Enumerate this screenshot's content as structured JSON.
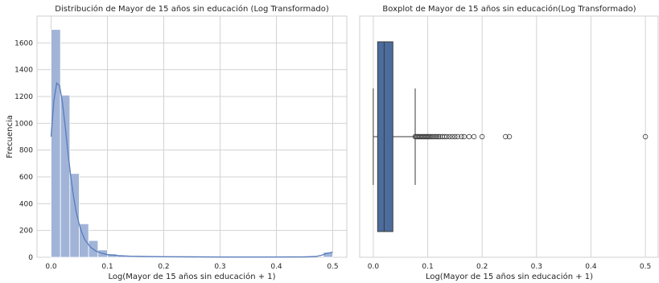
{
  "colors": {
    "hist_fill": "#a1b4d8",
    "hist_stroke": "#ffffff",
    "kde_line": "#5b7fbd",
    "box_fill": "#4c6c9e",
    "box_line": "#3b3b3b",
    "grid": "#d3d3d3",
    "frame": "#cfcfcf",
    "text": "#262626"
  },
  "chart_data": [
    {
      "type": "bar",
      "title": "Distribución de Mayor de 15 años sin educación (Log Transformado)",
      "xlabel": "Log(Mayor de 15 años sin educación + 1)",
      "ylabel": "Frecuencia",
      "xlim": [
        -0.025,
        0.525
      ],
      "ylim": [
        0,
        1800
      ],
      "xticks": [
        0.0,
        0.1,
        0.2,
        0.3,
        0.4,
        0.5
      ],
      "xtick_labels": [
        "0.0",
        "0.1",
        "0.2",
        "0.3",
        "0.4",
        "0.5"
      ],
      "yticks": [
        0,
        200,
        400,
        600,
        800,
        1000,
        1200,
        1400,
        1600
      ],
      "ytick_labels": [
        "0",
        "200",
        "400",
        "600",
        "800",
        "1000",
        "1200",
        "1400",
        "1600"
      ],
      "grid": true,
      "bin_width": 0.01667,
      "bins": [
        {
          "x0": 0.0,
          "x1": 0.01667,
          "count": 1700
        },
        {
          "x0": 0.01667,
          "x1": 0.03333,
          "count": 1210
        },
        {
          "x0": 0.03333,
          "x1": 0.05,
          "count": 625
        },
        {
          "x0": 0.05,
          "x1": 0.06667,
          "count": 250
        },
        {
          "x0": 0.06667,
          "x1": 0.08333,
          "count": 125
        },
        {
          "x0": 0.08333,
          "x1": 0.1,
          "count": 55
        },
        {
          "x0": 0.1,
          "x1": 0.11667,
          "count": 25
        },
        {
          "x0": 0.11667,
          "x1": 0.13333,
          "count": 12
        },
        {
          "x0": 0.13333,
          "x1": 0.15,
          "count": 8
        },
        {
          "x0": 0.15,
          "x1": 0.16667,
          "count": 6
        },
        {
          "x0": 0.16667,
          "x1": 0.18333,
          "count": 4
        },
        {
          "x0": 0.18333,
          "x1": 0.2,
          "count": 3
        },
        {
          "x0": 0.2,
          "x1": 0.21667,
          "count": 2
        },
        {
          "x0": 0.21667,
          "x1": 0.23333,
          "count": 1
        },
        {
          "x0": 0.23333,
          "x1": 0.25,
          "count": 1
        },
        {
          "x0": 0.25,
          "x1": 0.26667,
          "count": 1
        },
        {
          "x0": 0.48333,
          "x1": 0.5,
          "count": 38
        }
      ],
      "kde": {
        "x": [
          0.0,
          0.005,
          0.01,
          0.015,
          0.02,
          0.025,
          0.03,
          0.035,
          0.04,
          0.045,
          0.05,
          0.055,
          0.06,
          0.07,
          0.08,
          0.09,
          0.1,
          0.12,
          0.14,
          0.16,
          0.2,
          0.25,
          0.3,
          0.35,
          0.4,
          0.45,
          0.47,
          0.48,
          0.49,
          0.5
        ],
        "y": [
          900,
          1170,
          1300,
          1280,
          1160,
          980,
          780,
          600,
          450,
          330,
          245,
          180,
          130,
          75,
          45,
          30,
          20,
          12,
          8,
          6,
          4,
          3,
          2,
          2,
          2,
          3,
          6,
          15,
          30,
          38
        ]
      }
    },
    {
      "type": "box",
      "title": "Boxplot de Mayor de 15 años sin educación(Log Transformado)",
      "xlabel": "Log(Mayor de 15 años sin educación + 1)",
      "ylabel": "",
      "xlim": [
        -0.025,
        0.525
      ],
      "xticks": [
        0.0,
        0.1,
        0.2,
        0.3,
        0.4,
        0.5
      ],
      "xtick_labels": [
        "0.0",
        "0.1",
        "0.2",
        "0.3",
        "0.4",
        "0.5"
      ],
      "grid": true,
      "whisker_low": 0.0,
      "q1": 0.008,
      "median": 0.02,
      "q3": 0.036,
      "whisker_high": 0.077,
      "outliers": [
        0.077,
        0.079,
        0.081,
        0.083,
        0.085,
        0.087,
        0.089,
        0.091,
        0.093,
        0.095,
        0.097,
        0.099,
        0.101,
        0.103,
        0.105,
        0.108,
        0.111,
        0.114,
        0.117,
        0.12,
        0.123,
        0.127,
        0.131,
        0.135,
        0.14,
        0.145,
        0.15,
        0.155,
        0.162,
        0.167,
        0.176,
        0.185,
        0.2,
        0.243,
        0.25,
        0.5
      ]
    }
  ]
}
